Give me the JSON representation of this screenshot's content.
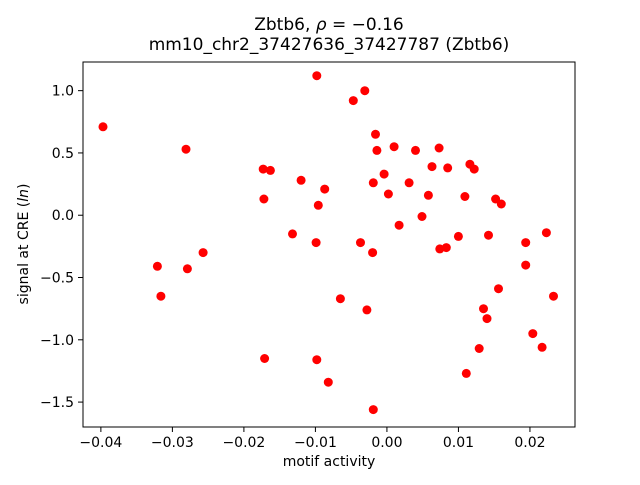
{
  "figure": {
    "background": "#ffffff",
    "spine_color": "#000000"
  },
  "chart_data": {
    "type": "scatter",
    "title": "Zbtb6, ρ = −0.16",
    "title_parts": {
      "prefix": "Zbtb6, ",
      "rho": "ρ",
      "rest": " = −0.16"
    },
    "subtitle": "mm10_chr2_37427636_37427787 (Zbtb6)",
    "xlabel": "motif activity",
    "ylabel": "signal at CRE (ln)",
    "ylabel_parts": {
      "prefix": "signal at CRE (",
      "italic": "ln",
      "suffix": ")"
    },
    "legend": null,
    "grid": false,
    "marker_color": "#ff0000",
    "marker_radius_px": 4.5,
    "xlim": [
      -0.0425,
      0.0263
    ],
    "ylim": [
      -1.7,
      1.23
    ],
    "xticks": [
      -0.04,
      -0.03,
      -0.02,
      -0.01,
      0.0,
      0.01,
      0.02
    ],
    "xtick_labels": [
      "−0.04",
      "−0.03",
      "−0.02",
      "−0.01",
      "0.00",
      "0.01",
      "0.02"
    ],
    "yticks": [
      1.0,
      0.5,
      0.0,
      -0.5,
      -1.0,
      -1.5
    ],
    "ytick_labels": [
      "1.0",
      "0.5",
      "0.0",
      "−0.5",
      "−1.0",
      "−1.5"
    ],
    "points": [
      [
        -0.0397,
        0.71
      ],
      [
        -0.0281,
        0.53
      ],
      [
        -0.0098,
        1.12
      ],
      [
        -0.0031,
        1.0
      ],
      [
        -0.0047,
        0.92
      ],
      [
        -0.0016,
        0.65
      ],
      [
        0.001,
        0.55
      ],
      [
        -0.0014,
        0.52
      ],
      [
        -0.0173,
        0.37
      ],
      [
        -0.0163,
        0.36
      ],
      [
        -0.012,
        0.28
      ],
      [
        -0.0004,
        0.33
      ],
      [
        -0.0019,
        0.26
      ],
      [
        0.0031,
        0.26
      ],
      [
        -0.0087,
        0.21
      ],
      [
        0.0002,
        0.17
      ],
      [
        -0.0172,
        0.13
      ],
      [
        -0.0096,
        0.08
      ],
      [
        0.0017,
        -0.08
      ],
      [
        -0.0132,
        -0.15
      ],
      [
        -0.0099,
        -0.22
      ],
      [
        -0.0037,
        -0.22
      ],
      [
        0.004,
        0.52
      ],
      [
        0.0073,
        0.54
      ],
      [
        0.0063,
        0.39
      ],
      [
        0.0085,
        0.38
      ],
      [
        0.0116,
        0.41
      ],
      [
        0.0122,
        0.37
      ],
      [
        0.0058,
        0.16
      ],
      [
        0.0109,
        0.15
      ],
      [
        0.0152,
        0.13
      ],
      [
        0.016,
        0.09
      ],
      [
        0.0049,
        -0.01
      ],
      [
        0.01,
        -0.17
      ],
      [
        0.0142,
        -0.16
      ],
      [
        0.0194,
        -0.22
      ],
      [
        0.0223,
        -0.14
      ],
      [
        0.0074,
        -0.27
      ],
      [
        0.0083,
        -0.26
      ],
      [
        -0.0257,
        -0.3
      ],
      [
        -0.0321,
        -0.41
      ],
      [
        -0.0279,
        -0.43
      ],
      [
        -0.0316,
        -0.65
      ],
      [
        -0.002,
        -0.3
      ],
      [
        -0.0065,
        -0.67
      ],
      [
        -0.0028,
        -0.76
      ],
      [
        -0.0171,
        -1.15
      ],
      [
        -0.0098,
        -1.16
      ],
      [
        -0.0082,
        -1.34
      ],
      [
        -0.0019,
        -1.56
      ],
      [
        0.0194,
        -0.4
      ],
      [
        0.0156,
        -0.59
      ],
      [
        0.0233,
        -0.65
      ],
      [
        0.0135,
        -0.75
      ],
      [
        0.014,
        -0.83
      ],
      [
        0.0204,
        -0.95
      ],
      [
        0.0217,
        -1.06
      ],
      [
        0.0129,
        -1.07
      ],
      [
        0.0111,
        -1.27
      ]
    ]
  }
}
